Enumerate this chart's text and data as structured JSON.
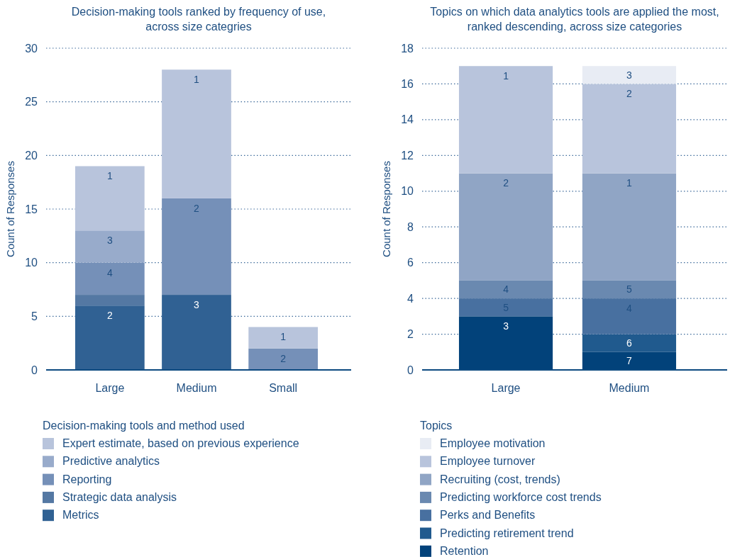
{
  "chart_data": [
    {
      "type": "bar",
      "stacked": true,
      "title": "Decision-making tools ranked by frequency of use, across size categries",
      "ylabel": "Count of Responses",
      "legend_title": "Decision-making tools and method used",
      "categories": [
        "Large",
        "Medium",
        "Small"
      ],
      "ylim": [
        0,
        30
      ],
      "yticks": [
        0,
        5,
        10,
        15,
        20,
        25,
        30
      ],
      "grid": "y",
      "legend": "bottom",
      "series": [
        {
          "name": "Metrics",
          "color": "#306193",
          "values": [
            6,
            7,
            0
          ]
        },
        {
          "name": "Strategic data analysis",
          "color": "#5478a3",
          "values": [
            1,
            0,
            0
          ]
        },
        {
          "name": "Reporting",
          "color": "#7590b8",
          "values": [
            3,
            9,
            2
          ]
        },
        {
          "name": "Predictive analytics",
          "color": "#98abcb",
          "values": [
            3,
            0,
            0
          ]
        },
        {
          "name": "Expert estimate, based on previous experience",
          "color": "#b8c4dc",
          "values": [
            6,
            12,
            2
          ]
        }
      ],
      "annotations": [
        {
          "text": "2",
          "x": "Large",
          "y": 6
        },
        {
          "text": "4",
          "x": "Large",
          "y": 10
        },
        {
          "text": "3",
          "x": "Large",
          "y": 13
        },
        {
          "text": "1",
          "x": "Large",
          "y": 19
        },
        {
          "text": "3",
          "x": "Medium",
          "y": 7
        },
        {
          "text": "2",
          "x": "Medium",
          "y": 16
        },
        {
          "text": "1",
          "x": "Medium",
          "y": 28
        },
        {
          "text": "2",
          "x": "Small",
          "y": 2
        },
        {
          "text": "1",
          "x": "Small",
          "y": 4
        }
      ]
    },
    {
      "type": "bar",
      "stacked": true,
      "title": "Topics on which data analytics tools are applied the most, ranked descending, across size categories",
      "ylabel": "Count of Responses",
      "legend_title": "Topics",
      "categories": [
        "Large",
        "Medium"
      ],
      "ylim": [
        0,
        18
      ],
      "yticks": [
        0,
        2,
        4,
        6,
        8,
        10,
        12,
        14,
        16,
        18
      ],
      "grid": "y",
      "legend": "bottom",
      "series": [
        {
          "name": "Retention",
          "color": "#02427a",
          "values": [
            3,
            1
          ]
        },
        {
          "name": "Predicting retirement trend",
          "color": "#205a8e",
          "values": [
            0,
            1
          ]
        },
        {
          "name": "Perks and Benefits",
          "color": "#4870a0",
          "values": [
            1,
            2
          ]
        },
        {
          "name": "Predicting workforce cost trends",
          "color": "#6a89b0",
          "values": [
            1,
            1
          ]
        },
        {
          "name": "Recruiting (cost, trends)",
          "color": "#90a5c5",
          "values": [
            6,
            6
          ]
        },
        {
          "name": "Employee turnover",
          "color": "#b8c4dc",
          "values": [
            6,
            5
          ]
        },
        {
          "name": "Employee motivation",
          "color": "#e8ecf4",
          "values": [
            0,
            1
          ]
        }
      ],
      "annotations": [
        {
          "text": "3",
          "x": "Large",
          "y": 3
        },
        {
          "text": "5",
          "x": "Large",
          "y": 4
        },
        {
          "text": "4",
          "x": "Large",
          "y": 5
        },
        {
          "text": "2",
          "x": "Large",
          "y": 11
        },
        {
          "text": "1",
          "x": "Large",
          "y": 17
        },
        {
          "text": "7",
          "x": "Medium",
          "y": 1
        },
        {
          "text": "6",
          "x": "Medium",
          "y": 2
        },
        {
          "text": "4",
          "x": "Medium",
          "y": 4
        },
        {
          "text": "5",
          "x": "Medium",
          "y": 5
        },
        {
          "text": "1",
          "x": "Medium",
          "y": 11
        },
        {
          "text": "2",
          "x": "Medium",
          "y": 16
        },
        {
          "text": "3",
          "x": "Medium",
          "y": 17
        }
      ]
    }
  ]
}
